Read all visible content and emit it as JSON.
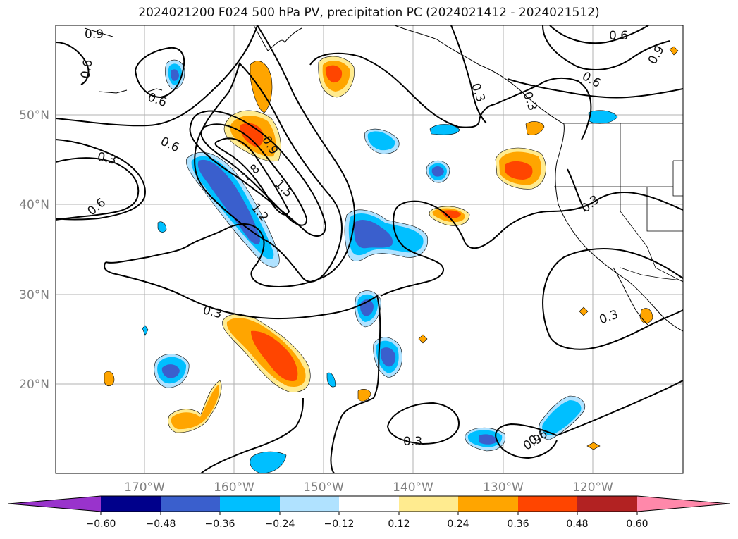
{
  "title": "2024021200 F024 500 hPa PV, precipitation PC (2024021412 - 2024021512)",
  "lat_labels": [
    "50°N",
    "40°N",
    "30°N",
    "20°N"
  ],
  "lon_labels": [
    "170°W",
    "160°W",
    "150°W",
    "140°W",
    "130°W",
    "120°W"
  ],
  "contour_labels": [
    "0.9",
    "0.6",
    "0.6",
    "0.3",
    "0.6",
    "0.6",
    "0.3",
    "0.9",
    "1.8",
    "1.5",
    "1.2",
    "0.9",
    "0.6",
    "0.3",
    "0.3",
    "0.3",
    "0.3",
    "0.6",
    "0.3",
    "0.9",
    "0.6"
  ],
  "colorbar": {
    "ticks": [
      "−0.60",
      "−0.48",
      "−0.36",
      "−0.24",
      "−0.12",
      "0.12",
      "0.24",
      "0.36",
      "0.48",
      "0.60"
    ],
    "colors": [
      "#9933cc",
      "#00008b",
      "#3a5fcd",
      "#00bfff",
      "#b0e2ff",
      "#ffffff",
      "#ffeb8f",
      "#ffa500",
      "#ff4500",
      "#b22222",
      "#ff88aa"
    ]
  },
  "fill_colors": {
    "neg1": "#b0e2ff",
    "neg2": "#00bfff",
    "neg3": "#3a5fcd",
    "pos1": "#ffeb8f",
    "pos2": "#ffa500",
    "pos3": "#ff4500"
  }
}
